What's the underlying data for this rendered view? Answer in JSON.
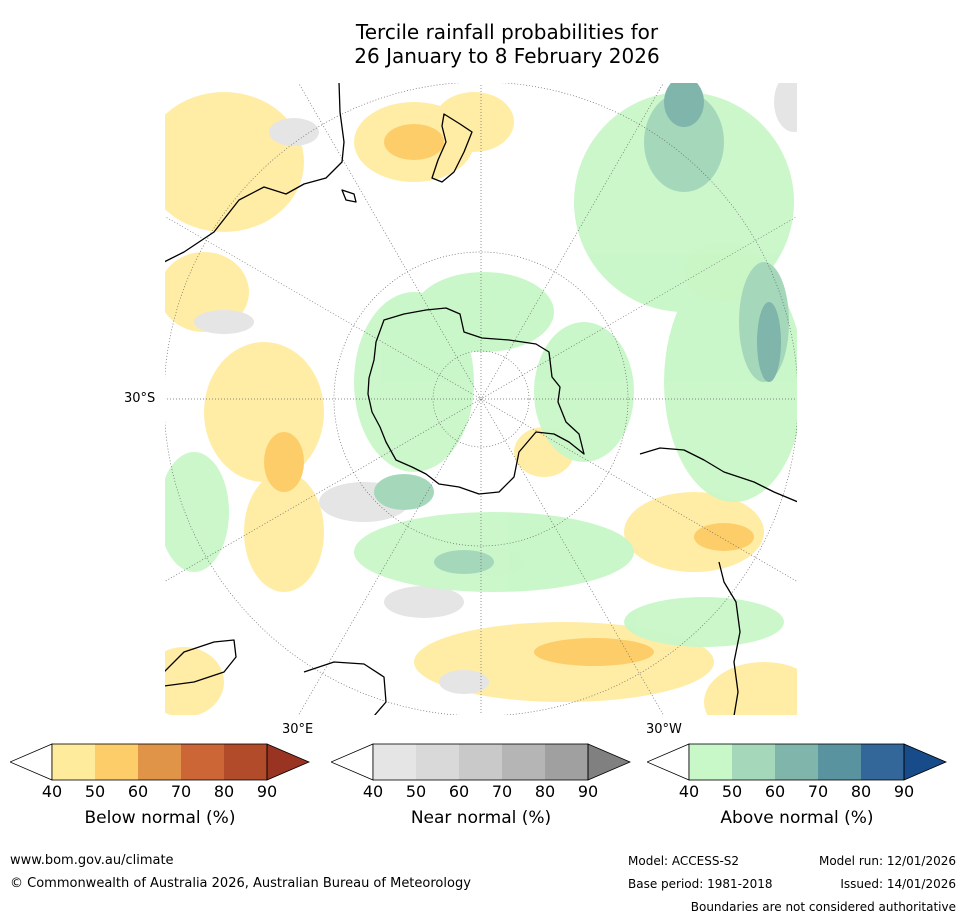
{
  "title_line1": "Tercile rainfall probabilities for",
  "title_line2": "26 January to 8 February 2026",
  "map": {
    "lat_label": "30°S",
    "lon_labels": [
      "30°E",
      "30°W"
    ]
  },
  "colorbars": [
    {
      "label": "Below normal (%)",
      "ticks": [
        "40",
        "50",
        "60",
        "70",
        "80",
        "90"
      ],
      "colors": [
        "#ffeb9c",
        "#fdcd6a",
        "#e09448",
        "#cd6636",
        "#b24b2a",
        "#993322"
      ]
    },
    {
      "label": "Near normal (%)",
      "ticks": [
        "40",
        "50",
        "60",
        "70",
        "80",
        "90"
      ],
      "colors": [
        "#e5e5e5",
        "#d9d9d9",
        "#c9c9c9",
        "#b5b5b5",
        "#a0a0a0",
        "#808080"
      ]
    },
    {
      "label": "Above normal (%)",
      "ticks": [
        "40",
        "50",
        "60",
        "70",
        "80",
        "90"
      ],
      "colors": [
        "#c8f7c8",
        "#a5d8ba",
        "#7fb5aa",
        "#5a93a0",
        "#336699",
        "#174b8a"
      ]
    }
  ],
  "footer": {
    "website": "www.bom.gov.au/climate",
    "copyright": "© Commonwealth of Australia 2026, Australian Bureau of Meteorology",
    "model": "Model: ACCESS-S2",
    "base_period": "Base period: 1981-2018",
    "model_run": "Model run: 12/01/2026",
    "issued": "Issued: 14/01/2026",
    "disclaimer": "Boundaries are not considered authoritative"
  }
}
